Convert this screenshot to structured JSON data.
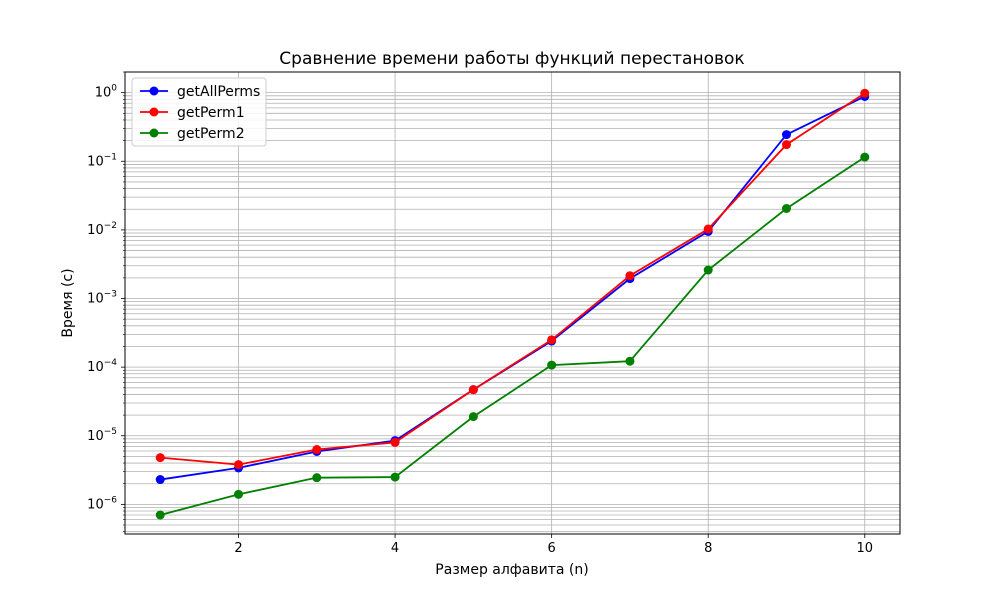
{
  "chart_data": {
    "type": "line",
    "title": "Сравнение времени работы функций перестановок",
    "xlabel": "Размер алфавита (n)",
    "ylabel": "Время (с)",
    "yscale": "log",
    "xlim": [
      0.55,
      10.45
    ],
    "ylim": [
      3.7e-07,
      2.0
    ],
    "x_ticks": [
      2,
      4,
      6,
      8,
      10
    ],
    "y_ticks": [
      {
        "value": 1e-06,
        "base": "10",
        "exp": "−6"
      },
      {
        "value": 1e-05,
        "base": "10",
        "exp": "−5"
      },
      {
        "value": 0.0001,
        "base": "10",
        "exp": "−4"
      },
      {
        "value": 0.001,
        "base": "10",
        "exp": "−3"
      },
      {
        "value": 0.01,
        "base": "10",
        "exp": "−2"
      },
      {
        "value": 0.1,
        "base": "10",
        "exp": "−1"
      },
      {
        "value": 1,
        "base": "10",
        "exp": "0"
      }
    ],
    "grid": true,
    "legend_position": "top-left",
    "x": [
      1,
      2,
      3,
      4,
      5,
      6,
      7,
      8,
      9,
      10
    ],
    "series": [
      {
        "name": "getAllPerms",
        "color": "#0000ff",
        "values": [
          2.3e-06,
          3.4e-06,
          5.9e-06,
          8.5e-06,
          4.7e-05,
          0.00024,
          0.00195,
          0.0095,
          0.245,
          0.88
        ]
      },
      {
        "name": "getPerm1",
        "color": "#ff0000",
        "values": [
          4.8e-06,
          3.8e-06,
          6.3e-06,
          8e-06,
          4.7e-05,
          0.00025,
          0.00215,
          0.0103,
          0.175,
          0.98
        ]
      },
      {
        "name": "getPerm2",
        "color": "#008000",
        "values": [
          7e-07,
          1.4e-06,
          2.45e-06,
          2.5e-06,
          1.9e-05,
          0.000107,
          0.000122,
          0.0026,
          0.0205,
          0.115
        ]
      }
    ]
  }
}
